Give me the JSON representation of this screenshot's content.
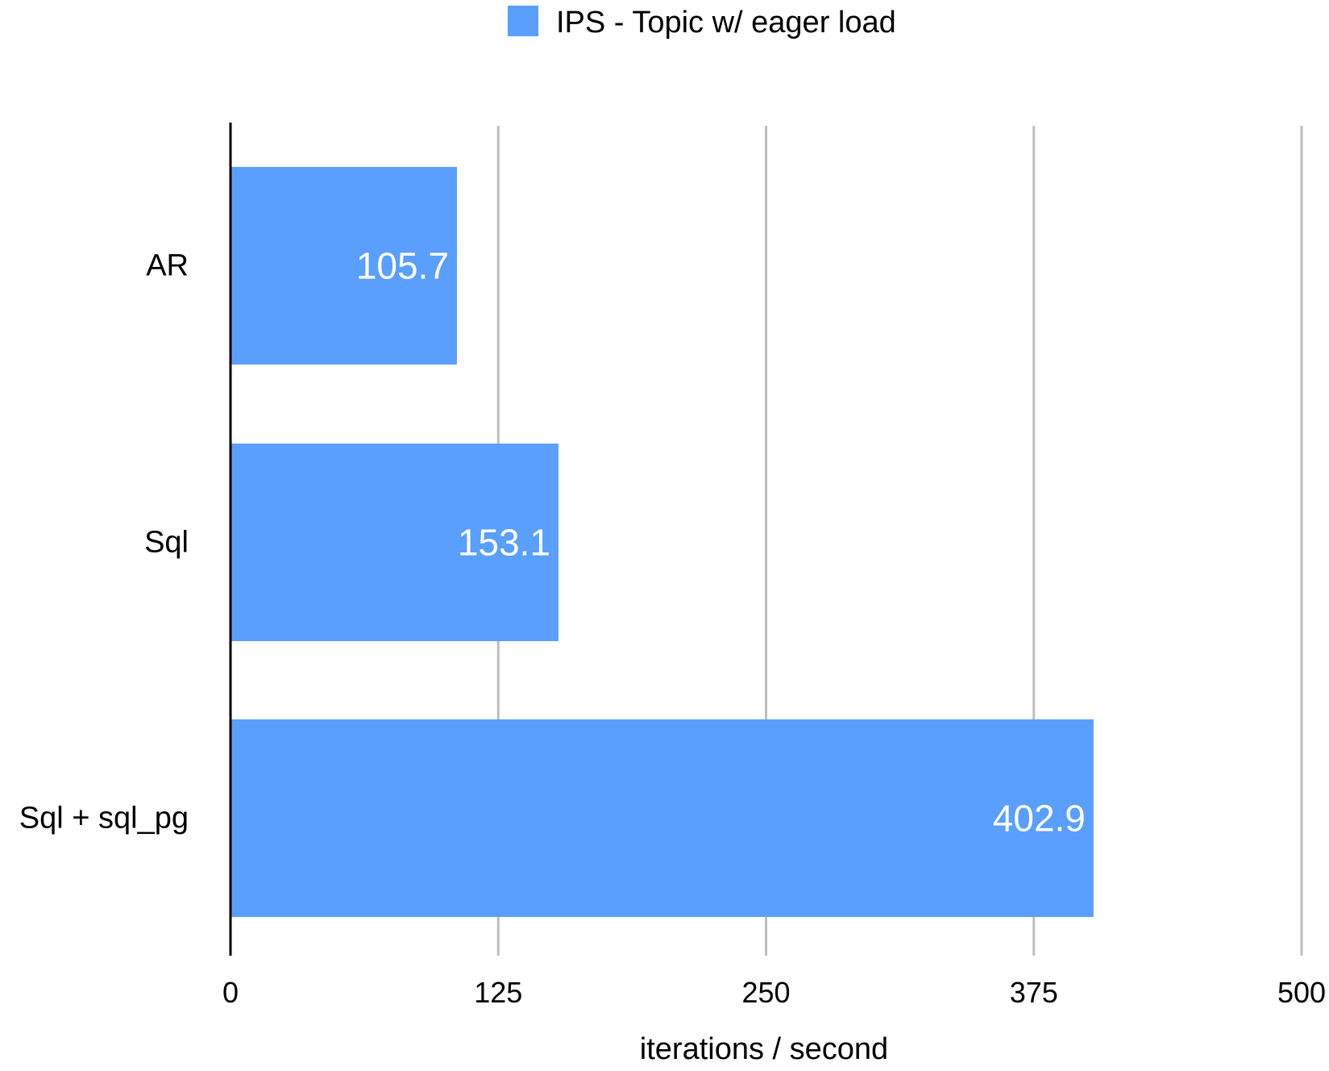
{
  "chart_data": {
    "type": "bar",
    "orientation": "horizontal",
    "categories": [
      "AR",
      "Sql",
      "Sql + sql_pg"
    ],
    "series": [
      {
        "name": "IPS - Topic w/ eager load",
        "values": [
          105.7,
          153.1,
          402.9
        ],
        "labels": [
          "105.7",
          "153.1",
          "402.9"
        ],
        "color": "#5b9ffd"
      }
    ],
    "xlabel": "iterations / second",
    "ylabel": "",
    "xlim": [
      0,
      500
    ],
    "xticks": [
      0,
      125,
      250,
      375,
      500
    ],
    "xtick_labels": [
      "0",
      "125",
      "250",
      "375",
      "500"
    ],
    "grid": true,
    "grid_color": "#bdbdbd",
    "axis_color": "#000000",
    "data_label_color": "#ffffff",
    "legend_position": "top-center"
  }
}
